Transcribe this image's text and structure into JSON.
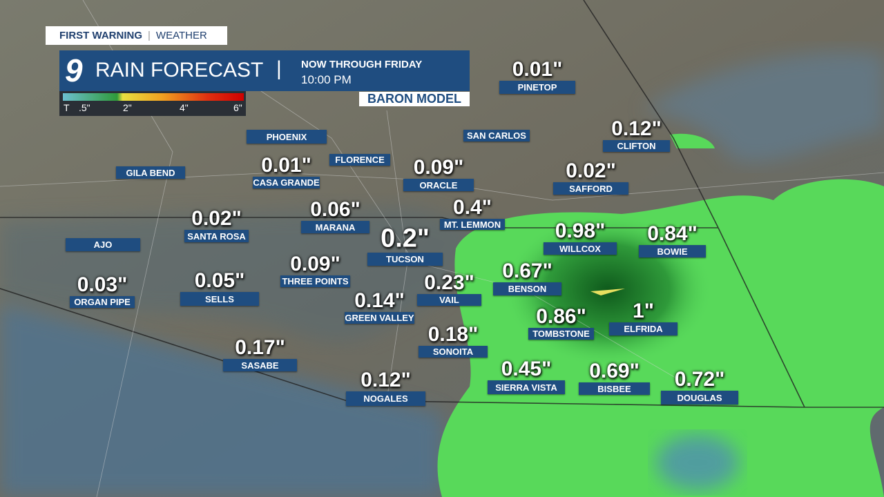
{
  "header": {
    "brand": "FIRST WARNING",
    "section": "WEATHER",
    "logo": "9",
    "title": "RAIN FORECAST",
    "period": "NOW THROUGH FRIDAY",
    "time": "10:00 PM",
    "model": "BARON MODEL"
  },
  "legend": {
    "labels": [
      "T",
      ".5\"",
      "2\"",
      "4\"",
      "6\""
    ]
  },
  "cities": [
    {
      "name": "PINETOP",
      "amount": "0.01\""
    },
    {
      "name": "CLIFTON",
      "amount": "0.12\""
    },
    {
      "name": "SAN CARLOS"
    },
    {
      "name": "PHOENIX"
    },
    {
      "name": "FLORENCE"
    },
    {
      "name": "GILA BEND"
    },
    {
      "name": "CASA GRANDE",
      "amount": "0.01\""
    },
    {
      "name": "ORACLE",
      "amount": "0.09\""
    },
    {
      "name": "SAFFORD",
      "amount": "0.02\""
    },
    {
      "name": "MARANA",
      "amount": "0.06\""
    },
    {
      "name": "SANTA ROSA",
      "amount": "0.02\""
    },
    {
      "name": "MT. LEMMON",
      "amount": "0.4\""
    },
    {
      "name": "AJO"
    },
    {
      "name": "WILLCOX",
      "amount": "0.98\""
    },
    {
      "name": "BOWIE",
      "amount": "0.84\""
    },
    {
      "name": "TUCSON",
      "amount": "0.2\""
    },
    {
      "name": "THREE POINTS",
      "amount": "0.09\""
    },
    {
      "name": "BENSON",
      "amount": "0.67\""
    },
    {
      "name": "ORGAN PIPE",
      "amount": "0.03\""
    },
    {
      "name": "SELLS",
      "amount": "0.05\""
    },
    {
      "name": "VAIL",
      "amount": "0.23\""
    },
    {
      "name": "GREEN VALLEY",
      "amount": "0.14\""
    },
    {
      "name": "TOMBSTONE",
      "amount": "0.86\""
    },
    {
      "name": "ELFRIDA",
      "amount": "1\""
    },
    {
      "name": "SONOITA",
      "amount": "0.18\""
    },
    {
      "name": "SASABE",
      "amount": "0.17\""
    },
    {
      "name": "SIERRA VISTA",
      "amount": "0.45\""
    },
    {
      "name": "BISBEE",
      "amount": "0.69\""
    },
    {
      "name": "DOUGLAS",
      "amount": "0.72\""
    },
    {
      "name": "NOGALES",
      "amount": "0.12\""
    }
  ]
}
